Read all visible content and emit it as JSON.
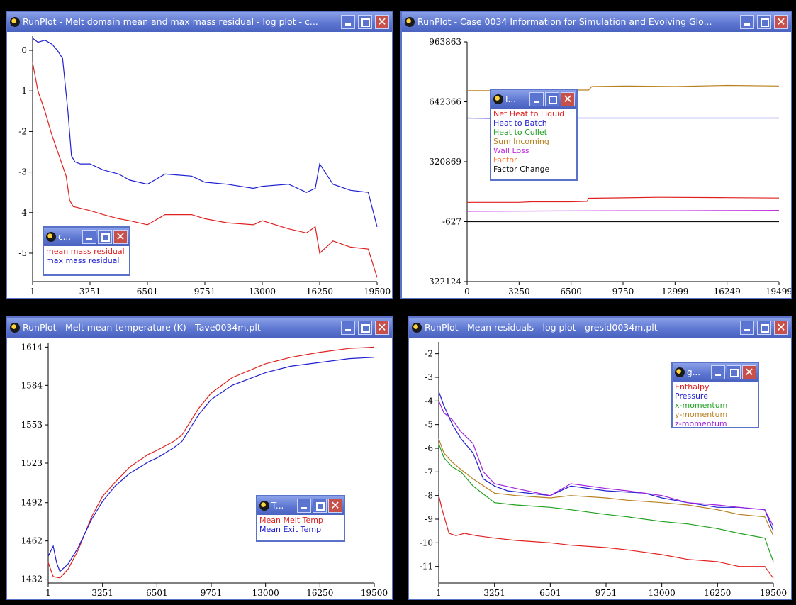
{
  "windows": [
    {
      "id": "w1",
      "title": "RunPlot - Melt domain mean and max mass residual - log plot - c...",
      "legend": {
        "title": "c...",
        "title_gap": 0
      },
      "chart_data": {
        "type": "line",
        "x_ticks": [
          "1",
          "3251",
          "6501",
          "9751",
          "13000",
          "16250",
          "19500"
        ],
        "y_ticks": [
          "0",
          "-1",
          "-2",
          "-3",
          "-4",
          "-5"
        ],
        "xlim": [
          1,
          19500
        ],
        "ylim": [
          -5.7,
          0.35
        ],
        "series": [
          {
            "name": "mean mass residual",
            "color": "#e02020",
            "x": [
              1,
              300,
              700,
              1100,
              1500,
              1900,
              2100,
              2300,
              2600,
              3251,
              4000,
              4875,
              5500,
              6501,
              7500,
              9000,
              9751,
              11000,
              12500,
              13000,
              14500,
              15500,
              16000,
              16250,
              17000,
              18000,
              19000,
              19500
            ],
            "y": [
              -0.3,
              -1.0,
              -1.5,
              -2.1,
              -2.6,
              -3.1,
              -3.7,
              -3.85,
              -3.88,
              -3.95,
              -4.05,
              -4.15,
              -4.2,
              -4.3,
              -4.05,
              -4.05,
              -4.15,
              -4.25,
              -4.3,
              -4.2,
              -4.4,
              -4.5,
              -4.35,
              -5.0,
              -4.7,
              -4.85,
              -4.9,
              -5.6
            ]
          },
          {
            "name": "max mass residual",
            "color": "#2020d0",
            "x": [
              1,
              300,
              700,
              1100,
              1400,
              1700,
              2000,
              2200,
              2400,
              2700,
              3251,
              4000,
              4875,
              5500,
              6501,
              7500,
              9000,
              9751,
              11000,
              12500,
              13000,
              14500,
              15500,
              16000,
              16250,
              17000,
              18000,
              19000,
              19500
            ],
            "y": [
              0.3,
              0.2,
              0.25,
              0.15,
              0.0,
              -0.2,
              -1.5,
              -2.6,
              -2.75,
              -2.8,
              -2.8,
              -2.95,
              -3.05,
              -3.2,
              -3.3,
              -3.05,
              -3.1,
              -3.25,
              -3.3,
              -3.4,
              -3.35,
              -3.3,
              -3.5,
              -3.4,
              -2.8,
              -3.3,
              -3.45,
              -3.5,
              -4.35
            ]
          }
        ]
      }
    },
    {
      "id": "w2",
      "title": "RunPlot - Case 0034 Information for Simulation and Evolving Glo...",
      "legend": {
        "title": "I..."
      },
      "chart_data": {
        "type": "line",
        "x_ticks": [
          "0",
          "3250",
          "6500",
          "9750",
          "12999",
          "16249",
          "19499"
        ],
        "y_ticks": [
          "963863",
          "642366",
          "320869",
          "-627",
          "-322124"
        ],
        "xlim": [
          0,
          19499
        ],
        "ylim": [
          -322124,
          963863
        ],
        "series": [
          {
            "name": "Net Heat to Liquid",
            "color": "#e02020",
            "x": [
              0,
              3250,
              4000,
              6500,
              7500,
              7600,
              12000,
              16249,
              19499
            ],
            "y": [
              103000,
              103000,
              106000,
              106000,
              108000,
              125000,
              130000,
              128000,
              126000
            ]
          },
          {
            "name": "Heat to Batch",
            "color": "#2020d0",
            "x": [
              0,
              3250,
              6500,
              9750,
              12999,
              16249,
              19499
            ],
            "y": [
              555000,
              552000,
              555000,
              555000,
              555000,
              555000,
              555000
            ]
          },
          {
            "name": "Heat to Cullet",
            "color": "#20a020",
            "x": [],
            "y": []
          },
          {
            "name": "Sum Incoming",
            "color": "#b88020",
            "x": [
              0,
              3250,
              6500,
              7600,
              7800,
              9750,
              12999,
              16249,
              19499
            ],
            "y": [
              702000,
              702000,
              705000,
              705000,
              724000,
              727000,
              724000,
              730000,
              727000
            ]
          },
          {
            "name": "Wall Loss",
            "color": "#c030e0",
            "x": [
              0,
              3250,
              6500,
              9750,
              12999,
              16249,
              19499
            ],
            "y": [
              55000,
              56000,
              57000,
              58000,
              58000,
              59000,
              60000
            ]
          },
          {
            "name": "Factor",
            "color": "#ff7a30",
            "x": [],
            "y": []
          },
          {
            "name": "Factor Change",
            "color": "#111111",
            "x": [
              0,
              19499
            ],
            "y": [
              -627,
              -627
            ]
          }
        ]
      }
    },
    {
      "id": "w3",
      "title": "RunPlot - Melt mean temperature (K) - Tave0034m.plt",
      "legend": {
        "title": "T..."
      },
      "chart_data": {
        "type": "line",
        "x_ticks": [
          "1",
          "3251",
          "6501",
          "9751",
          "13000",
          "16250",
          "19500"
        ],
        "y_ticks": [
          "1614",
          "1584",
          "1553",
          "1523",
          "1492",
          "1462",
          "1432"
        ],
        "xlim": [
          1,
          19500
        ],
        "ylim": [
          1429,
          1617
        ],
        "series": [
          {
            "name": "Mean Melt Temp",
            "color": "#e02020",
            "x": [
              1,
              300,
              700,
              1200,
              1800,
              2600,
              3251,
              4000,
              4875,
              6000,
              6501,
              7500,
              8000,
              9000,
              9751,
              11000,
              13000,
              14500,
              16250,
              18000,
              19500
            ],
            "y": [
              1445,
              1434,
              1433,
              1440,
              1455,
              1481,
              1497,
              1508,
              1520,
              1530,
              1533,
              1540,
              1545,
              1566,
              1578,
              1590,
              1601,
              1606,
              1610,
              1613,
              1614
            ]
          },
          {
            "name": "Mean Exit Temp",
            "color": "#2020d0",
            "x": [
              1,
              300,
              500,
              700,
              1200,
              1800,
              2600,
              3251,
              4000,
              4875,
              6000,
              6501,
              7500,
              8000,
              9000,
              9751,
              11000,
              13000,
              14500,
              16250,
              18000,
              19500
            ],
            "y": [
              1450,
              1458,
              1445,
              1438,
              1444,
              1457,
              1479,
              1493,
              1505,
              1515,
              1524,
              1527,
              1535,
              1540,
              1561,
              1573,
              1584,
              1594,
              1599,
              1602,
              1605,
              1606
            ]
          }
        ]
      }
    },
    {
      "id": "w4",
      "title": "RunPlot - Mean residuals - log plot - gresid0034m.plt",
      "legend": {
        "title": "g..."
      },
      "chart_data": {
        "type": "line",
        "x_ticks": [
          "1",
          "3251",
          "6501",
          "9751",
          "13000",
          "16250",
          "19500"
        ],
        "y_ticks": [
          "-2",
          "-3",
          "-4",
          "-5",
          "-6",
          "-7",
          "-8",
          "-9",
          "-10",
          "-11"
        ],
        "xlim": [
          1,
          19500
        ],
        "ylim": [
          -11.7,
          -1.5
        ],
        "series": [
          {
            "name": "Enthalpy",
            "color": "#e02020",
            "x": [
              1,
              200,
              600,
              1000,
              1500,
              2200,
              3251,
              4500,
              6501,
              7700,
              9751,
              11000,
              13000,
              14500,
              16250,
              17500,
              19000,
              19500
            ],
            "y": [
              -8.0,
              -8.6,
              -9.6,
              -9.7,
              -9.6,
              -9.7,
              -9.8,
              -9.9,
              -10.0,
              -10.1,
              -10.2,
              -10.3,
              -10.5,
              -10.7,
              -10.8,
              -11.0,
              -11.0,
              -11.5
            ]
          },
          {
            "name": "Pressure",
            "color": "#2020d0",
            "x": [
              1,
              300,
              800,
              1300,
              2000,
              2600,
              3251,
              4000,
              6501,
              7700,
              9751,
              12000,
              13000,
              14500,
              16250,
              17500,
              19000,
              19500
            ],
            "y": [
              -3.6,
              -4.2,
              -5.0,
              -5.6,
              -6.2,
              -7.3,
              -7.6,
              -7.8,
              -8.0,
              -7.6,
              -7.8,
              -7.9,
              -8.1,
              -8.3,
              -8.5,
              -8.5,
              -8.6,
              -9.5
            ]
          },
          {
            "name": "x-momentum",
            "color": "#20a020",
            "x": [
              1,
              300,
              800,
              1300,
              2000,
              3251,
              4500,
              6501,
              7700,
              9751,
              11000,
              13000,
              14500,
              16250,
              17500,
              19000,
              19500
            ],
            "y": [
              -5.8,
              -6.4,
              -6.8,
              -7.0,
              -7.6,
              -8.3,
              -8.4,
              -8.5,
              -8.6,
              -8.8,
              -8.9,
              -9.1,
              -9.2,
              -9.4,
              -9.6,
              -9.8,
              -10.8
            ]
          },
          {
            "name": "y-momentum",
            "color": "#b88020",
            "x": [
              1,
              300,
              800,
              1300,
              2000,
              3251,
              4500,
              6501,
              7700,
              9751,
              11000,
              13000,
              14500,
              16250,
              17500,
              19000,
              19500
            ],
            "y": [
              -5.6,
              -6.2,
              -6.6,
              -6.9,
              -7.3,
              -7.9,
              -8.0,
              -8.1,
              -8.0,
              -8.1,
              -8.2,
              -8.3,
              -8.4,
              -8.6,
              -8.8,
              -8.9,
              -9.7
            ]
          },
          {
            "name": "z-momentum",
            "color": "#a020e0",
            "x": [
              1,
              300,
              800,
              1300,
              2000,
              2600,
              3251,
              4500,
              6501,
              7700,
              9751,
              11000,
              13000,
              14500,
              16250,
              17500,
              19000,
              19500
            ],
            "y": [
              -4.0,
              -4.5,
              -4.8,
              -5.3,
              -5.8,
              -7.0,
              -7.5,
              -7.7,
              -8.0,
              -7.5,
              -7.7,
              -7.8,
              -8.0,
              -8.3,
              -8.4,
              -8.5,
              -8.6,
              -9.3
            ]
          }
        ]
      }
    }
  ]
}
